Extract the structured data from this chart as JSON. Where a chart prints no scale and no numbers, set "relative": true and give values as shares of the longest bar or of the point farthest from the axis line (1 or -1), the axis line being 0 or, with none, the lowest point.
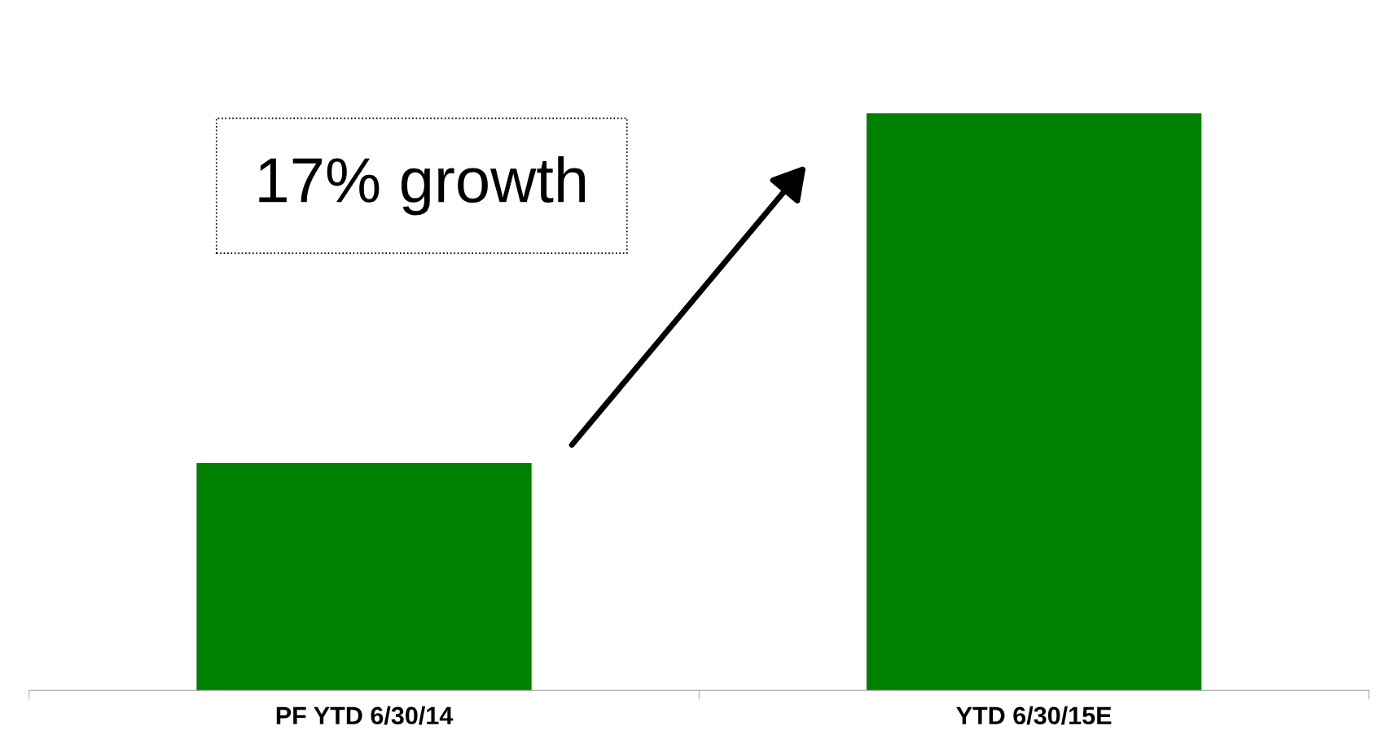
{
  "chart_data": {
    "type": "bar",
    "relative": true,
    "categories": [
      "PF YTD 6/30/14",
      "YTD 6/30/15E"
    ],
    "values": [
      0.394,
      1
    ],
    "color": "#008000",
    "annotations": [
      "17% growth"
    ],
    "grid": false,
    "legend": false
  }
}
